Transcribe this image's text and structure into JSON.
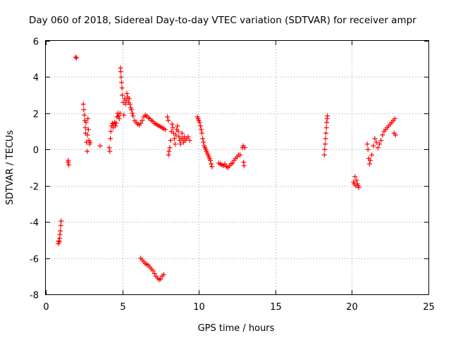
{
  "chart_data": {
    "type": "scatter",
    "title": "Day 060 of 2018, Sidereal Day-to-day VTEC variation (SDTVAR) for receiver ampr",
    "xlabel": "GPS time / hours",
    "ylabel": "SDTVAR / TECUs",
    "xlim": [
      0,
      25
    ],
    "ylim": [
      -8,
      6
    ],
    "xticks": [
      0,
      5,
      10,
      15,
      20,
      25
    ],
    "yticks": [
      -8,
      -6,
      -4,
      -2,
      0,
      2,
      4,
      6
    ],
    "grid": true,
    "marker": "+",
    "color": "#ff0000",
    "series": [
      {
        "name": "SDTVAR",
        "points": [
          [
            0.82,
            -5.2
          ],
          [
            0.85,
            -5.05
          ],
          [
            0.88,
            -5.1
          ],
          [
            0.9,
            -4.9
          ],
          [
            0.92,
            -4.7
          ],
          [
            0.95,
            -4.5
          ],
          [
            0.98,
            -4.2
          ],
          [
            1.0,
            -3.95
          ],
          [
            1.45,
            -0.7
          ],
          [
            1.47,
            -0.6
          ],
          [
            1.5,
            -0.85
          ],
          [
            1.95,
            5.1
          ],
          [
            2.0,
            5.05
          ],
          [
            2.45,
            2.5
          ],
          [
            2.48,
            2.2
          ],
          [
            2.52,
            1.9
          ],
          [
            2.55,
            1.6
          ],
          [
            2.58,
            1.2
          ],
          [
            2.6,
            0.9
          ],
          [
            2.63,
            1.5
          ],
          [
            2.66,
            0.4
          ],
          [
            2.7,
            -0.1
          ],
          [
            2.72,
            0.8
          ],
          [
            2.75,
            1.7
          ],
          [
            2.78,
            1.1
          ],
          [
            2.82,
            0.5
          ],
          [
            2.86,
            0.3
          ],
          [
            2.9,
            0.4
          ],
          [
            3.55,
            0.2
          ],
          [
            4.15,
            0.1
          ],
          [
            4.18,
            -0.1
          ],
          [
            4.22,
            0.6
          ],
          [
            4.25,
            1.0
          ],
          [
            4.3,
            1.3
          ],
          [
            4.35,
            1.45
          ],
          [
            4.4,
            1.2
          ],
          [
            4.45,
            1.4
          ],
          [
            4.5,
            1.5
          ],
          [
            4.55,
            1.3
          ],
          [
            4.6,
            1.45
          ],
          [
            4.65,
            1.8
          ],
          [
            4.7,
            2.0
          ],
          [
            4.75,
            1.85
          ],
          [
            4.8,
            1.7
          ],
          [
            4.85,
            2.0
          ],
          [
            4.88,
            4.5
          ],
          [
            4.9,
            4.3
          ],
          [
            4.92,
            4.0
          ],
          [
            4.95,
            3.7
          ],
          [
            4.98,
            3.4
          ],
          [
            5.0,
            3.0
          ],
          [
            5.05,
            2.6
          ],
          [
            5.1,
            1.9
          ],
          [
            5.15,
            2.8
          ],
          [
            5.2,
            2.5
          ],
          [
            5.25,
            2.7
          ],
          [
            5.3,
            3.1
          ],
          [
            5.35,
            2.9
          ],
          [
            5.4,
            2.6
          ],
          [
            5.45,
            2.8
          ],
          [
            5.5,
            2.5
          ],
          [
            5.55,
            2.3
          ],
          [
            5.6,
            2.2
          ],
          [
            5.65,
            2.0
          ],
          [
            5.7,
            1.85
          ],
          [
            5.8,
            1.6
          ],
          [
            5.9,
            1.5
          ],
          [
            6.0,
            1.4
          ],
          [
            6.1,
            1.35
          ],
          [
            6.2,
            1.45
          ],
          [
            6.3,
            1.6
          ],
          [
            6.4,
            1.8
          ],
          [
            6.5,
            1.9
          ],
          [
            6.6,
            1.85
          ],
          [
            6.7,
            1.75
          ],
          [
            6.8,
            1.7
          ],
          [
            6.9,
            1.6
          ],
          [
            7.0,
            1.55
          ],
          [
            7.1,
            1.45
          ],
          [
            7.2,
            1.4
          ],
          [
            7.3,
            1.35
          ],
          [
            7.4,
            1.3
          ],
          [
            7.5,
            1.25
          ],
          [
            7.6,
            1.2
          ],
          [
            7.7,
            1.15
          ],
          [
            7.8,
            1.1
          ],
          [
            6.2,
            -6.0
          ],
          [
            6.3,
            -6.1
          ],
          [
            6.4,
            -6.2
          ],
          [
            6.5,
            -6.3
          ],
          [
            6.6,
            -6.35
          ],
          [
            6.7,
            -6.4
          ],
          [
            6.8,
            -6.5
          ],
          [
            6.9,
            -6.6
          ],
          [
            7.0,
            -6.7
          ],
          [
            7.1,
            -6.85
          ],
          [
            7.2,
            -7.0
          ],
          [
            7.3,
            -7.1
          ],
          [
            7.4,
            -7.2
          ],
          [
            7.5,
            -7.15
          ],
          [
            7.6,
            -7.0
          ],
          [
            7.7,
            -6.9
          ],
          [
            7.95,
            1.8
          ],
          [
            8.0,
            1.6
          ],
          [
            8.02,
            -0.3
          ],
          [
            8.05,
            -0.1
          ],
          [
            8.1,
            0.1
          ],
          [
            8.15,
            0.5
          ],
          [
            8.2,
            1.0
          ],
          [
            8.25,
            1.4
          ],
          [
            8.3,
            1.2
          ],
          [
            8.35,
            0.9
          ],
          [
            8.4,
            0.6
          ],
          [
            8.45,
            0.3
          ],
          [
            8.5,
            0.8
          ],
          [
            8.55,
            1.1
          ],
          [
            8.6,
            1.3
          ],
          [
            8.65,
            1.0
          ],
          [
            8.7,
            0.7
          ],
          [
            8.75,
            0.5
          ],
          [
            8.8,
            0.3
          ],
          [
            8.85,
            0.6
          ],
          [
            8.9,
            0.9
          ],
          [
            8.95,
            0.6
          ],
          [
            9.0,
            0.4
          ],
          [
            9.05,
            0.7
          ],
          [
            9.1,
            0.5
          ],
          [
            9.2,
            0.6
          ],
          [
            9.3,
            0.7
          ],
          [
            9.4,
            0.5
          ],
          [
            9.9,
            1.8
          ],
          [
            9.95,
            1.7
          ],
          [
            10.0,
            1.6
          ],
          [
            10.05,
            1.5
          ],
          [
            10.1,
            1.3
          ],
          [
            10.15,
            1.1
          ],
          [
            10.2,
            0.9
          ],
          [
            10.25,
            0.6
          ],
          [
            10.3,
            0.4
          ],
          [
            10.35,
            0.2
          ],
          [
            10.4,
            0.1
          ],
          [
            10.45,
            0.0
          ],
          [
            10.5,
            -0.1
          ],
          [
            10.55,
            -0.2
          ],
          [
            10.6,
            -0.3
          ],
          [
            10.65,
            -0.4
          ],
          [
            10.7,
            -0.5
          ],
          [
            10.75,
            -0.6
          ],
          [
            10.8,
            -0.8
          ],
          [
            10.85,
            -0.95
          ],
          [
            11.3,
            -0.75
          ],
          [
            11.4,
            -0.8
          ],
          [
            11.5,
            -0.85
          ],
          [
            11.6,
            -0.9
          ],
          [
            11.7,
            -0.8
          ],
          [
            11.8,
            -0.95
          ],
          [
            11.9,
            -1.0
          ],
          [
            12.0,
            -0.9
          ],
          [
            12.1,
            -0.8
          ],
          [
            12.2,
            -0.75
          ],
          [
            12.3,
            -0.6
          ],
          [
            12.4,
            -0.5
          ],
          [
            12.5,
            -0.4
          ],
          [
            12.6,
            -0.3
          ],
          [
            12.7,
            -0.3
          ],
          [
            12.85,
            0.1
          ],
          [
            12.9,
            0.2
          ],
          [
            12.92,
            -0.7
          ],
          [
            12.95,
            -0.9
          ],
          [
            13.0,
            0.1
          ],
          [
            18.2,
            -0.3
          ],
          [
            18.22,
            0.0
          ],
          [
            18.25,
            0.3
          ],
          [
            18.28,
            0.6
          ],
          [
            18.3,
            0.9
          ],
          [
            18.33,
            1.2
          ],
          [
            18.35,
            1.5
          ],
          [
            18.38,
            1.7
          ],
          [
            18.4,
            1.85
          ],
          [
            20.1,
            -1.8
          ],
          [
            20.15,
            -1.9
          ],
          [
            20.2,
            -1.5
          ],
          [
            20.25,
            -2.0
          ],
          [
            20.3,
            -1.7
          ],
          [
            20.35,
            -1.9
          ],
          [
            20.4,
            -2.0
          ],
          [
            20.45,
            -2.1
          ],
          [
            21.0,
            0.3
          ],
          [
            21.05,
            0.0
          ],
          [
            21.1,
            -0.5
          ],
          [
            21.15,
            -0.8
          ],
          [
            21.2,
            -0.6
          ],
          [
            21.3,
            -0.3
          ],
          [
            21.4,
            0.2
          ],
          [
            21.5,
            0.6
          ],
          [
            21.6,
            0.4
          ],
          [
            21.7,
            0.1
          ],
          [
            21.8,
            0.3
          ],
          [
            21.9,
            0.5
          ],
          [
            22.0,
            0.8
          ],
          [
            22.1,
            1.0
          ],
          [
            22.2,
            1.1
          ],
          [
            22.3,
            1.2
          ],
          [
            22.4,
            1.3
          ],
          [
            22.5,
            1.4
          ],
          [
            22.6,
            1.5
          ],
          [
            22.7,
            1.6
          ],
          [
            22.75,
            0.9
          ],
          [
            22.8,
            1.7
          ],
          [
            22.85,
            0.8
          ]
        ]
      }
    ]
  }
}
